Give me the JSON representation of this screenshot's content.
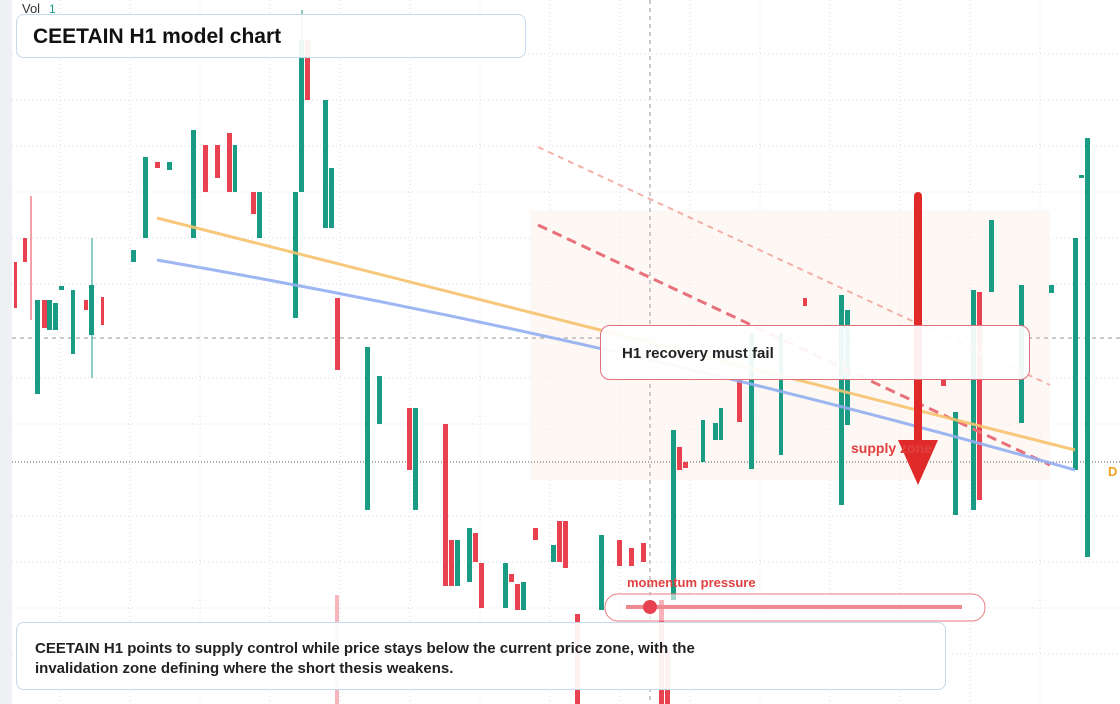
{
  "header": {
    "vol_label": "Vol",
    "vol_value": "1",
    "title": "CEETAIN H1 model chart"
  },
  "annotations": {
    "callout": "H1 recovery must fail",
    "zone": "supply zone",
    "slider": "momentum pressure",
    "edge_label": "D"
  },
  "description": "CEETAIN H1 points to supply control while price stays below the current price zone, with the invalidation zone defining where the short thesis weakens."
}
